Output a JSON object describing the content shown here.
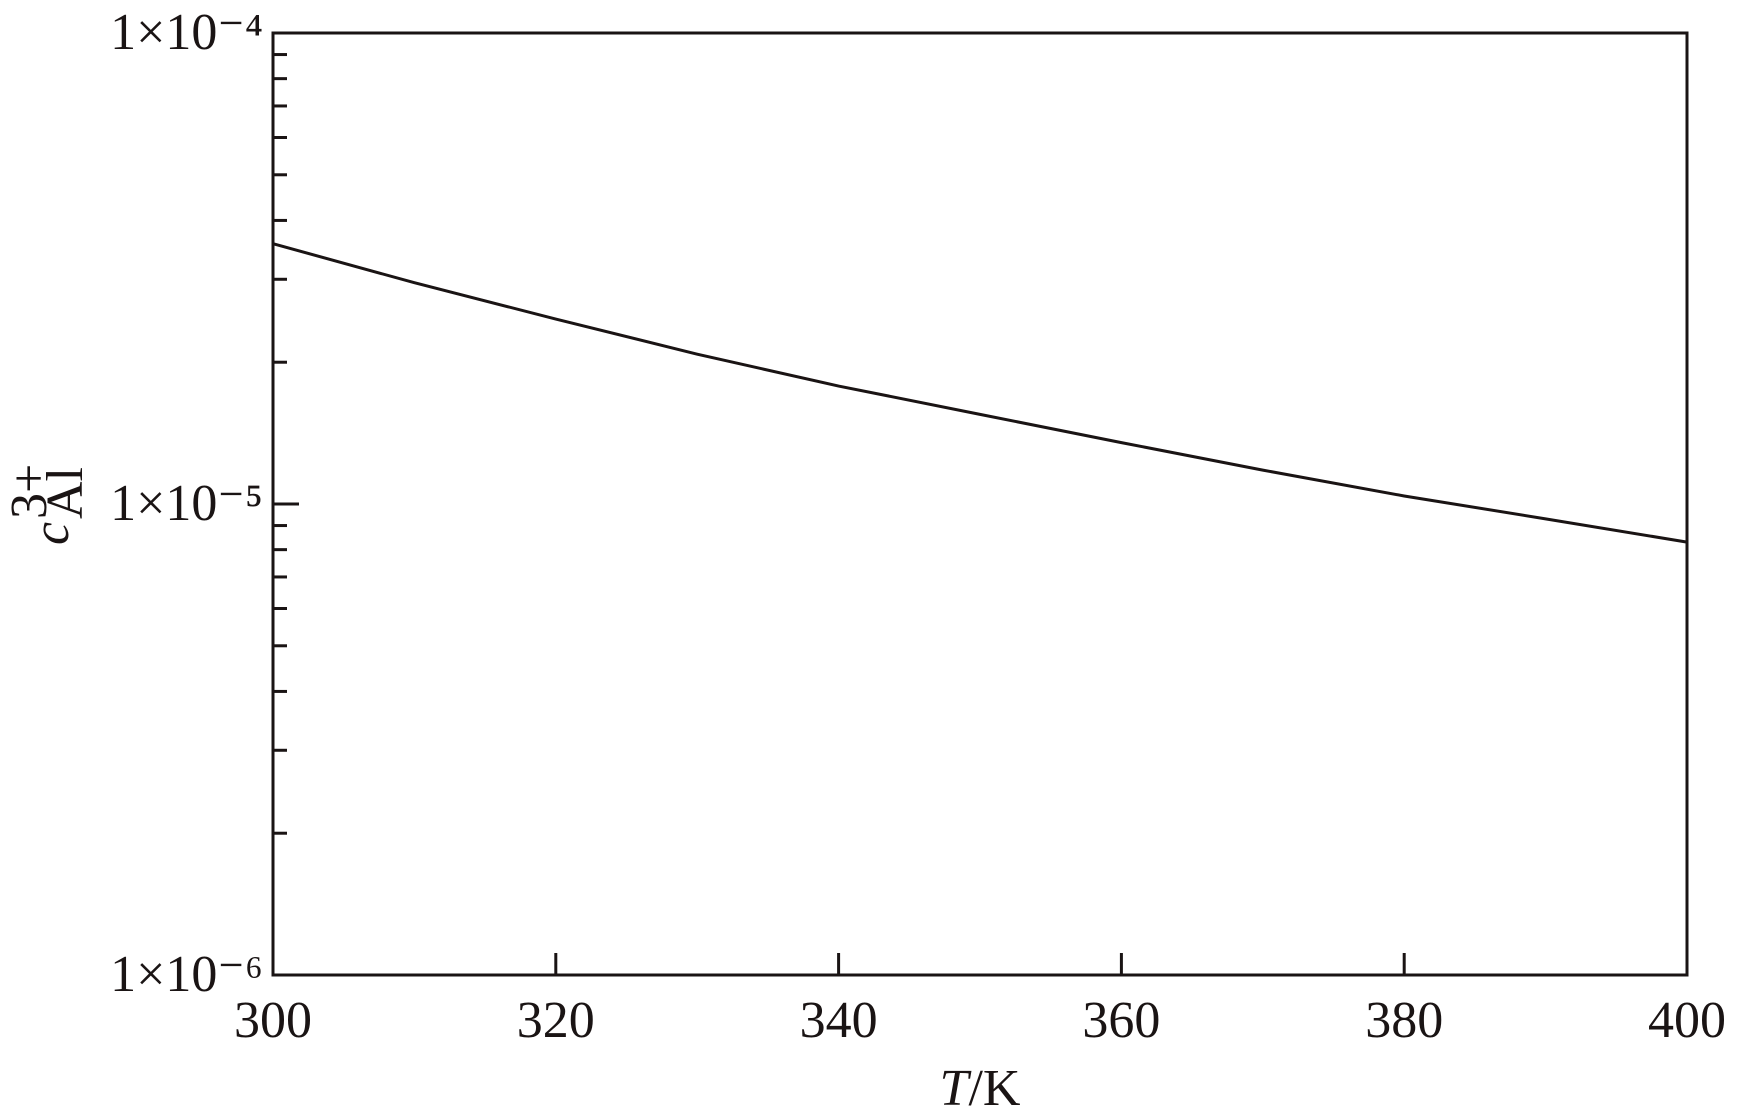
{
  "chart_data": {
    "type": "line",
    "xlabel": {
      "variable": "T",
      "unit": "/K"
    },
    "ylabel": {
      "symbol": "c",
      "subscript": "Al",
      "superscript": "3+"
    },
    "x": [
      300,
      310,
      320,
      330,
      340,
      350,
      360,
      370,
      380,
      390,
      400
    ],
    "series": [
      {
        "color": "#1a1414",
        "values": [
          3.57e-05,
          2.95e-05,
          2.47e-05,
          2.08e-05,
          1.78e-05,
          1.55e-05,
          1.35e-05,
          1.18e-05,
          1.04e-05,
          9.3e-06,
          8.3e-06
        ]
      }
    ],
    "xlim": [
      300,
      400
    ],
    "xticks": [
      300,
      320,
      340,
      360,
      380,
      400
    ],
    "ylim": [
      1e-06,
      0.0001
    ],
    "yscale": "log",
    "yticks": [
      {
        "value": 1e-06,
        "label": "1×10⁻⁶"
      },
      {
        "value": 1e-05,
        "label": "1×10⁻⁵"
      },
      {
        "value": 0.0001,
        "label": "1×10⁻⁴"
      }
    ],
    "yminorticks": [
      2e-06,
      3e-06,
      4e-06,
      5e-06,
      6e-06,
      7e-06,
      8e-06,
      9e-06,
      2e-05,
      3e-05,
      4e-05,
      5e-05,
      6e-05,
      7e-05,
      8e-05,
      9e-05
    ]
  }
}
